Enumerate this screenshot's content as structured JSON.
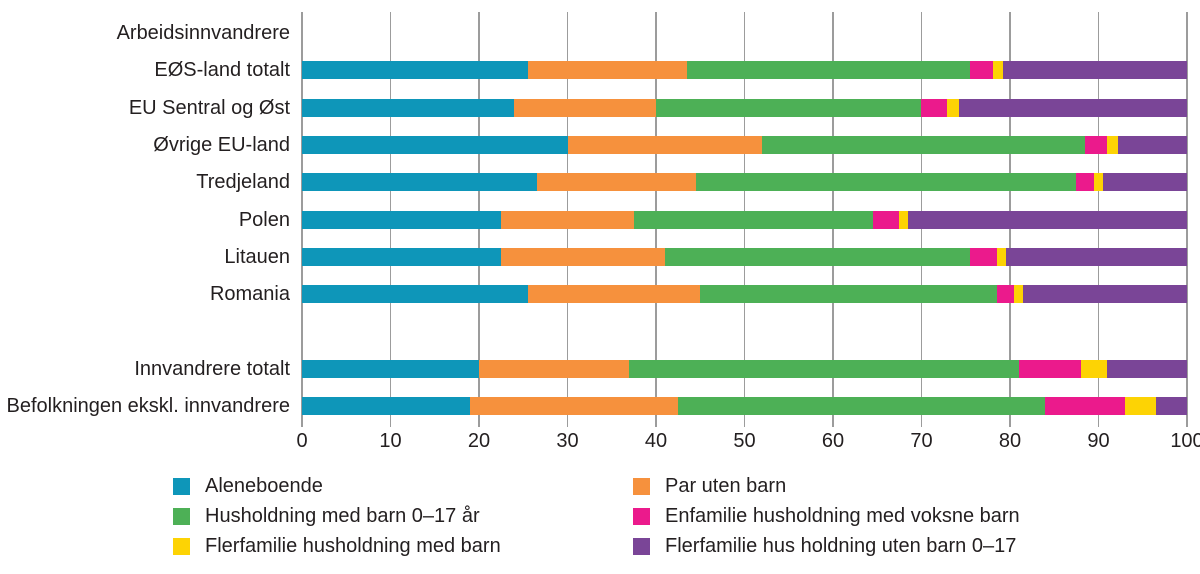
{
  "chart_data": {
    "type": "bar",
    "subtype": "horizontal-stacked",
    "title": "",
    "xlabel": "",
    "ylabel": "",
    "xlim": [
      0,
      100
    ],
    "x_ticks": [
      0,
      10,
      20,
      30,
      40,
      50,
      60,
      70,
      80,
      90,
      100
    ],
    "grid": "vertical",
    "legend_position": "bottom-two-columns",
    "series": [
      {
        "name": "Aleneboende",
        "color": "#0e96b9"
      },
      {
        "name": "Par uten barn",
        "color": "#f6913d"
      },
      {
        "name": "Husholdning med barn 0–17 år",
        "color": "#4db056"
      },
      {
        "name": "Enfamilie husholdning med voksne barn",
        "color": "#eb1a8c"
      },
      {
        "name": "Flerfamilie husholdning med barn",
        "color": "#fdd304"
      },
      {
        "name": "Flerfamilie hus holdning uten barn 0–17",
        "color": "#7a4597"
      }
    ],
    "rows": [
      {
        "label": "Arbeidsinnvandrere",
        "values": null
      },
      {
        "label": "EØS-land totalt",
        "values": [
          25.5,
          18,
          32,
          2.6,
          1.1,
          20.8
        ]
      },
      {
        "label": "EU Sentral og Øst",
        "values": [
          24,
          16,
          30,
          2.9,
          1.3,
          25.8
        ]
      },
      {
        "label": "Øvrige EU-land",
        "values": [
          30,
          22,
          36.5,
          2.5,
          1.2,
          7.8
        ]
      },
      {
        "label": "Tredjeland",
        "values": [
          26.5,
          18,
          43,
          2,
          1,
          9.5
        ]
      },
      {
        "label": "Polen",
        "values": [
          22.5,
          15,
          27,
          3,
          1,
          31.5
        ]
      },
      {
        "label": "Litauen",
        "values": [
          22.5,
          18.5,
          34.5,
          3,
          1,
          20.5
        ]
      },
      {
        "label": "Romania",
        "values": [
          25.5,
          19.5,
          33.5,
          2,
          1,
          18.5
        ]
      },
      {
        "label": "",
        "values": null
      },
      {
        "label": "Innvandrere totalt",
        "values": [
          20,
          17,
          44,
          7,
          3,
          9
        ]
      },
      {
        "label": "Befolkningen ekskl. innvandrere",
        "values": [
          19,
          23.5,
          41.5,
          9,
          3.5,
          3.5
        ]
      }
    ],
    "legend_columns": [
      [
        0,
        2,
        4
      ],
      [
        1,
        3,
        5
      ]
    ]
  },
  "layout_colors": {
    "gridline": "#9c9c9c",
    "text": "#231f20",
    "background": "#ffffff"
  }
}
